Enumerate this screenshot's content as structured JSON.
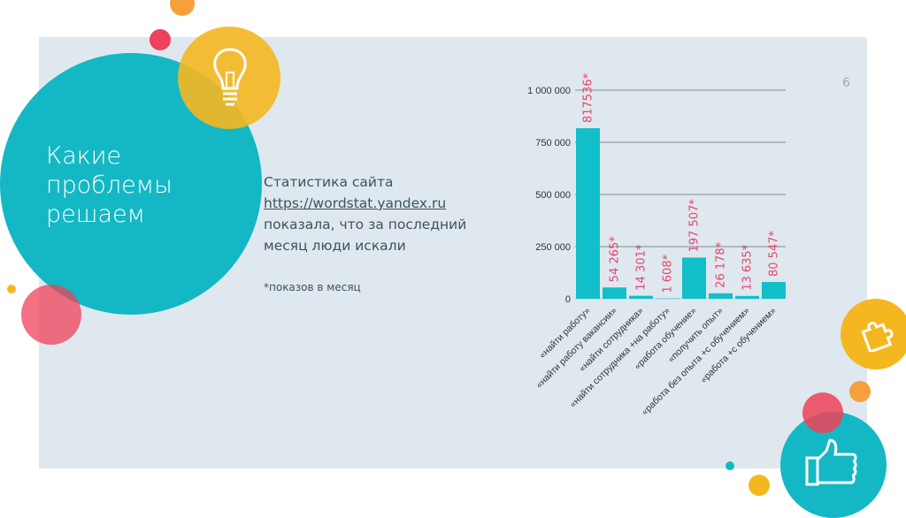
{
  "slide": {
    "title_lines": [
      "Какие",
      "проблемы",
      "решаем"
    ],
    "page_number": "6",
    "stat_line1": "Статистика сайта",
    "stat_link": "https://wordstat.yandex.ru",
    "stat_line3": "показала, что за последний",
    "stat_line4": "месяц люди искали",
    "footnote": "*показов в месяц"
  },
  "colors": {
    "teal": "#14b8c4",
    "yellow": "#f5b720",
    "red": "#ef4159",
    "orange": "#f5a03a",
    "bar": "#13bfc9",
    "label": "#e8436a"
  },
  "chart_data": {
    "type": "bar",
    "title": "",
    "xlabel": "",
    "ylabel": "",
    "ylim": [
      0,
      1000000
    ],
    "yticks": [
      0,
      250000,
      500000,
      750000,
      1000000
    ],
    "ytick_labels": [
      "0",
      "250 000",
      "500 000",
      "750 000",
      "1 000 000"
    ],
    "categories": [
      "«найти работу»",
      "«найти работу вакансии»",
      "«найти сотрудника»",
      "«найти сотрудника +на работу»",
      "«работа обучение»",
      "«получить опыт»",
      "«работа без опыта +с обучением»",
      "«работа +с обучением»"
    ],
    "values": [
      817536,
      54265,
      14301,
      1608,
      197507,
      26178,
      13635,
      80547
    ],
    "data_labels": [
      "817536*",
      "54 265*",
      "14 301*",
      "1 608*",
      "197 507*",
      "26 178*",
      "13 635*",
      "80 547*"
    ],
    "grid": true
  }
}
